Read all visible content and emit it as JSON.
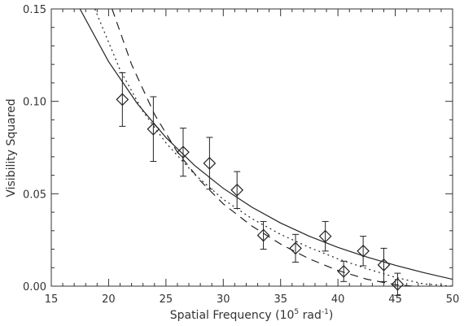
{
  "chart_data": {
    "type": "scatter",
    "title": "",
    "xlabel": "Spatial Frequency (10",
    "xlabel_sup": "5",
    "xlabel_rest": " rad",
    "xlabel_sup2": "-1",
    "xlabel_end": ")",
    "ylabel": "Visibility Squared",
    "xlim": [
      15,
      50
    ],
    "ylim": [
      0,
      0.15
    ],
    "x_ticks": [
      "15",
      "20",
      "25",
      "30",
      "35",
      "40",
      "45",
      "50"
    ],
    "y_ticks": [
      "0.00",
      "0.05",
      "0.10",
      "0.15"
    ],
    "x_tick_values": [
      15,
      20,
      25,
      30,
      35,
      40,
      45,
      50
    ],
    "y_tick_values": [
      0,
      0.05,
      0.1,
      0.15
    ],
    "grid": false,
    "points": [
      {
        "x": 21.2,
        "y": 0.101,
        "err": 0.0145
      },
      {
        "x": 23.9,
        "y": 0.085,
        "err": 0.0175
      },
      {
        "x": 26.5,
        "y": 0.0725,
        "err": 0.013
      },
      {
        "x": 28.8,
        "y": 0.0665,
        "err": 0.014
      },
      {
        "x": 31.2,
        "y": 0.052,
        "err": 0.01
      },
      {
        "x": 33.5,
        "y": 0.0275,
        "err": 0.0075
      },
      {
        "x": 36.3,
        "y": 0.0205,
        "err": 0.0075
      },
      {
        "x": 38.9,
        "y": 0.027,
        "err": 0.008
      },
      {
        "x": 40.5,
        "y": 0.008,
        "err": 0.0055
      },
      {
        "x": 42.2,
        "y": 0.019,
        "err": 0.008
      },
      {
        "x": 44.0,
        "y": 0.0115,
        "err": 0.009
      },
      {
        "x": 45.2,
        "y": 0.001,
        "err": 0.006
      }
    ],
    "curves": [
      {
        "style": "solid",
        "x": [
          17.5,
          20,
          22.5,
          25,
          27.5,
          30,
          32.5,
          35,
          37.5,
          40,
          42.5,
          45,
          47.5,
          50
        ],
        "y": [
          0.15,
          0.1215,
          0.0988,
          0.0804,
          0.0653,
          0.0529,
          0.0427,
          0.0342,
          0.027,
          0.021,
          0.0158,
          0.0113,
          0.0073,
          0.0037
        ]
      },
      {
        "style": "dotted",
        "x": [
          18.8,
          21,
          23,
          25,
          27.5,
          30,
          32.5,
          35,
          37.5,
          40,
          42.5,
          45,
          47.5,
          50
        ],
        "y": [
          0.15,
          0.117,
          0.0945,
          0.0775,
          0.0605,
          0.047,
          0.0365,
          0.028,
          0.021,
          0.0148,
          0.0095,
          0.0048,
          0.0012,
          0.0
        ]
      },
      {
        "style": "dashed",
        "x": [
          20.3,
          22,
          24,
          26,
          28,
          30,
          32.5,
          35,
          37.5,
          40,
          42.5,
          45,
          46.5
        ],
        "y": [
          0.15,
          0.12,
          0.093,
          0.0725,
          0.057,
          0.0445,
          0.0325,
          0.0228,
          0.0148,
          0.0085,
          0.0038,
          0.0008,
          0.0
        ]
      }
    ]
  }
}
